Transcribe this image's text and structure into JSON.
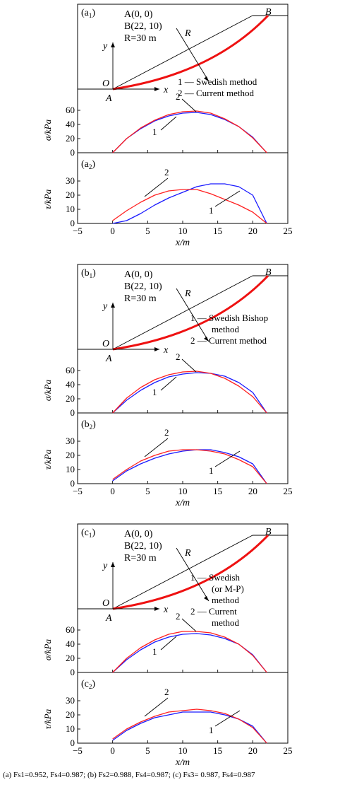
{
  "colors": {
    "series1": "#1a1aff",
    "series2": "#ff2020",
    "slip": "#ee1111",
    "axis": "#000000"
  },
  "panels": [
    {
      "id": "a",
      "top_label": "(a",
      "top_sub": "1",
      "bottom_label": "(a",
      "bottom_sub": "2",
      "info": [
        "A(0, 0)",
        "B(22, 10)",
        "R=30 m"
      ],
      "legend": [
        {
          "num": "1",
          "lines": [
            "Swedish method"
          ]
        },
        {
          "num": "2",
          "lines": [
            "Current method"
          ]
        }
      ],
      "sigma_callouts": [
        "2",
        "1"
      ],
      "tau_callouts": [
        "2",
        "1"
      ]
    },
    {
      "id": "b",
      "top_label": "(b",
      "top_sub": "1",
      "bottom_label": "(b",
      "bottom_sub": "2",
      "info": [
        "A(0, 0)",
        "B(22, 10)",
        "R=30 m"
      ],
      "legend": [
        {
          "num": "1",
          "lines": [
            "Swedish Bishop",
            "method"
          ]
        },
        {
          "num": "2",
          "lines": [
            "Current method"
          ]
        }
      ],
      "sigma_callouts": [
        "2",
        "1"
      ],
      "tau_callouts": [
        "2",
        "1"
      ]
    },
    {
      "id": "c",
      "top_label": "(c",
      "top_sub": "1",
      "bottom_label": "(c",
      "bottom_sub": "2",
      "info": [
        "A(0, 0)",
        "B(22, 10)",
        "R=30 m"
      ],
      "legend": [
        {
          "num": "1",
          "lines": [
            "Swedish",
            "(or M-P)",
            "method"
          ]
        },
        {
          "num": "2",
          "lines": [
            "Current",
            "method"
          ]
        }
      ],
      "sigma_callouts": [
        "2",
        "1"
      ],
      "tau_callouts": [
        "2",
        "1"
      ]
    }
  ],
  "geometry_labels": {
    "point_o": "O",
    "point_a": "A",
    "point_b": "B",
    "radius": "R",
    "x_axis": "x",
    "y_axis": "y"
  },
  "axes": {
    "sigma_ylabel": "σ/kPa",
    "tau_ylabel": "τ/kPa",
    "xlabel": "x/m",
    "x_ticks": [
      "−5",
      "0",
      "5",
      "10",
      "15",
      "20",
      "25"
    ],
    "sigma_ticks": [
      "0",
      "20",
      "40",
      "60"
    ],
    "tau_ticks": [
      "0",
      "10",
      "20",
      "30"
    ]
  },
  "caption": "(a) Fs1=0.952, Fs4=0.987; (b) Fs2=0.988, Fs4=0.987; (c) Fs3= 0.987, Fs4=0.987",
  "chart_data": [
    {
      "type": "line",
      "panel": "a1",
      "ylabel": "σ/kPa",
      "xlabel": "",
      "xlim": [
        -5,
        25
      ],
      "ylim": [
        0,
        75
      ],
      "series": [
        {
          "name": "1",
          "x": [
            0,
            2,
            4,
            6,
            8,
            10,
            12,
            14,
            16,
            18,
            20,
            22
          ],
          "values": [
            0,
            20,
            34,
            45,
            52,
            56,
            57,
            54,
            47,
            37,
            22,
            0
          ]
        },
        {
          "name": "2",
          "x": [
            0,
            2,
            4,
            6,
            8,
            10,
            12,
            14,
            16,
            18,
            20,
            22
          ],
          "values": [
            0,
            20,
            35,
            46,
            54,
            58,
            59,
            56,
            48,
            37,
            21,
            0
          ]
        }
      ]
    },
    {
      "type": "line",
      "panel": "a2",
      "ylabel": "τ/kPa",
      "xlabel": "x/m",
      "xlim": [
        -5,
        25
      ],
      "ylim": [
        0,
        35
      ],
      "series": [
        {
          "name": "1",
          "x": [
            0,
            2,
            4,
            6,
            8,
            10,
            12,
            14,
            16,
            18,
            20,
            22
          ],
          "values": [
            0,
            2,
            7,
            13,
            18,
            22,
            26,
            28,
            28,
            26,
            20,
            0
          ]
        },
        {
          "name": "2",
          "x": [
            0,
            2,
            4,
            6,
            8,
            10,
            12,
            14,
            16,
            18,
            20,
            22
          ],
          "values": [
            2,
            9,
            15,
            20,
            23,
            24,
            24,
            21,
            17,
            13,
            8,
            0
          ]
        }
      ]
    },
    {
      "type": "line",
      "panel": "b1",
      "ylabel": "σ/kPa",
      "xlabel": "",
      "xlim": [
        -5,
        25
      ],
      "ylim": [
        0,
        75
      ],
      "series": [
        {
          "name": "1",
          "x": [
            0,
            2,
            4,
            6,
            8,
            10,
            12,
            14,
            16,
            18,
            20,
            22
          ],
          "values": [
            0,
            18,
            32,
            43,
            51,
            55,
            57,
            56,
            52,
            43,
            29,
            0
          ]
        },
        {
          "name": "2",
          "x": [
            0,
            2,
            4,
            6,
            8,
            10,
            12,
            14,
            16,
            18,
            20,
            22
          ],
          "values": [
            0,
            21,
            36,
            47,
            54,
            58,
            59,
            56,
            49,
            38,
            23,
            0
          ]
        }
      ]
    },
    {
      "type": "line",
      "panel": "b2",
      "ylabel": "τ/kPa",
      "xlabel": "x/m",
      "xlim": [
        -5,
        25
      ],
      "ylim": [
        0,
        35
      ],
      "series": [
        {
          "name": "1",
          "x": [
            0,
            2,
            4,
            6,
            8,
            10,
            12,
            14,
            16,
            18,
            20,
            22
          ],
          "values": [
            2,
            9,
            14,
            18,
            21,
            23,
            24,
            24,
            22,
            19,
            14,
            0
          ]
        },
        {
          "name": "2",
          "x": [
            0,
            2,
            4,
            6,
            8,
            10,
            12,
            14,
            16,
            18,
            20,
            22
          ],
          "values": [
            3,
            10,
            16,
            20,
            23,
            24,
            24,
            23,
            21,
            17,
            12,
            0
          ]
        }
      ]
    },
    {
      "type": "line",
      "panel": "c1",
      "ylabel": "σ/kPa",
      "xlabel": "",
      "xlim": [
        -5,
        25
      ],
      "ylim": [
        0,
        75
      ],
      "series": [
        {
          "name": "1",
          "x": [
            0,
            2,
            4,
            6,
            8,
            10,
            12,
            14,
            16,
            18,
            20,
            22
          ],
          "values": [
            0,
            18,
            32,
            43,
            50,
            54,
            55,
            53,
            48,
            40,
            25,
            0
          ]
        },
        {
          "name": "2",
          "x": [
            0,
            2,
            4,
            6,
            8,
            10,
            12,
            14,
            16,
            18,
            20,
            22
          ],
          "values": [
            0,
            20,
            35,
            46,
            54,
            58,
            58,
            56,
            50,
            40,
            24,
            0
          ]
        }
      ]
    },
    {
      "type": "line",
      "panel": "c2",
      "ylabel": "τ/kPa",
      "xlabel": "x/m",
      "xlim": [
        -5,
        25
      ],
      "ylim": [
        0,
        35
      ],
      "series": [
        {
          "name": "1",
          "x": [
            0,
            2,
            4,
            6,
            8,
            10,
            12,
            14,
            16,
            18,
            20,
            22
          ],
          "values": [
            2,
            9,
            14,
            18,
            20,
            22,
            22,
            22,
            20,
            17,
            12,
            0
          ]
        },
        {
          "name": "2",
          "x": [
            0,
            2,
            4,
            6,
            8,
            10,
            12,
            14,
            16,
            18,
            20,
            22
          ],
          "values": [
            3,
            10,
            15,
            19,
            22,
            23,
            24,
            23,
            21,
            17,
            11,
            0
          ]
        }
      ]
    }
  ]
}
